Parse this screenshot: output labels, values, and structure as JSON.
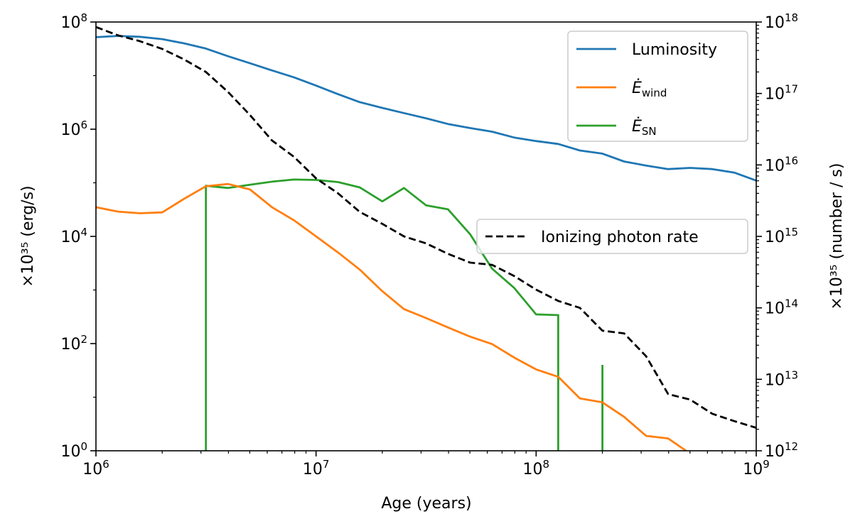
{
  "chart_data": {
    "type": "line",
    "xlabel": "Age (years)",
    "ylabel_left": "×10³⁵ (erg/s)",
    "ylabel_right": "×10³⁵ (number / s)",
    "x_scale": "log",
    "y_scale": "log",
    "y2_scale": "log",
    "xlim": [
      1000000.0,
      1000000000.0
    ],
    "ylim": [
      1,
      100000000.0
    ],
    "y2lim": [
      1000000000000.0,
      1e+18
    ],
    "grid": false,
    "x_ticks": [
      {
        "value": 1000000.0,
        "base": "10",
        "exp": "6"
      },
      {
        "value": 10000000.0,
        "base": "10",
        "exp": "7"
      },
      {
        "value": 100000000.0,
        "base": "10",
        "exp": "8"
      },
      {
        "value": 1000000000.0,
        "base": "10",
        "exp": "9"
      }
    ],
    "y_ticks": [
      {
        "value": 1,
        "base": "10",
        "exp": "0"
      },
      {
        "value": 100,
        "base": "10",
        "exp": "2"
      },
      {
        "value": 10000,
        "base": "10",
        "exp": "4"
      },
      {
        "value": 1000000,
        "base": "10",
        "exp": "6"
      },
      {
        "value": 100000000,
        "base": "10",
        "exp": "8"
      }
    ],
    "y2_ticks": [
      {
        "value": 1000000000000.0,
        "base": "10",
        "exp": "12"
      },
      {
        "value": 10000000000000.0,
        "base": "10",
        "exp": "13"
      },
      {
        "value": 100000000000000.0,
        "base": "10",
        "exp": "14"
      },
      {
        "value": 1000000000000000.0,
        "base": "10",
        "exp": "15"
      },
      {
        "value": 1e+16,
        "base": "10",
        "exp": "16"
      },
      {
        "value": 1e+17,
        "base": "10",
        "exp": "17"
      },
      {
        "value": 1e+18,
        "base": "10",
        "exp": "18"
      }
    ],
    "series": [
      {
        "id": "luminosity",
        "name": "Luminosity",
        "axis": "left",
        "color": "#1f77b4",
        "style": "solid",
        "x": [
          1000000.0,
          1260000.0,
          1580000.0,
          2000000.0,
          2510000.0,
          3160000.0,
          3980000.0,
          5010000.0,
          6310000.0,
          7940000.0,
          10000000.0,
          12600000.0,
          15800000.0,
          20000000.0,
          25100000.0,
          31600000.0,
          39800000.0,
          50100000.0,
          63100000.0,
          79400000.0,
          100000000.0,
          126000000.0,
          158000000.0,
          200000000.0,
          251000000.0,
          316000000.0,
          398000000.0,
          501000000.0,
          631000000.0,
          794000000.0,
          1000000000.0
        ],
        "y": [
          52000000.0,
          55000000.0,
          53000000.0,
          48000000.0,
          40000000.0,
          32000000.0,
          23000000.0,
          17000000.0,
          12500000.0,
          9300000.0,
          6500000.0,
          4500000.0,
          3200000.0,
          2500000.0,
          2000000.0,
          1600000.0,
          1250000.0,
          1050000.0,
          900000.0,
          700000.0,
          600000.0,
          530000.0,
          400000.0,
          350000.0,
          250000.0,
          210000.0,
          180000.0,
          190000.0,
          180000.0,
          155000.0,
          110000.0
        ]
      },
      {
        "id": "e_wind",
        "name": "Ė_wind",
        "name_main": "Ė",
        "name_sub": "wind",
        "axis": "left",
        "color": "#ff7f0e",
        "style": "solid",
        "x": [
          1000000.0,
          1260000.0,
          1580000.0,
          2000000.0,
          2510000.0,
          3160000.0,
          3980000.0,
          5010000.0,
          6310000.0,
          7940000.0,
          10000000.0,
          12600000.0,
          15800000.0,
          20000000.0,
          25100000.0,
          31600000.0,
          39800000.0,
          50100000.0,
          63100000.0,
          79400000.0,
          100000000.0,
          126000000.0,
          158000000.0,
          200000000.0,
          251000000.0,
          316000000.0,
          398000000.0,
          480000000.0
        ],
        "y": [
          35000.0,
          29000.0,
          27000.0,
          28000.0,
          50000.0,
          86000.0,
          95000.0,
          75000.0,
          35000.0,
          20000.0,
          10000.0,
          5000.0,
          2400.0,
          950.0,
          440.0,
          300.0,
          200.0,
          135.0,
          98.0,
          55.0,
          33.0,
          24.0,
          9.5,
          8,
          4.3,
          1.9,
          1.7,
          1
        ]
      },
      {
        "id": "e_sn",
        "name": "Ė_SN",
        "name_main": "Ė",
        "name_sub": "SN",
        "axis": "left",
        "color": "#2ca02c",
        "style": "solid",
        "segments": [
          {
            "x": [
              3160000.0,
              3160000.0,
              3980000.0,
              5010000.0,
              6310000.0,
              7940000.0,
              10000000.0,
              12600000.0,
              15800000.0,
              20000000.0,
              25100000.0,
              31600000.0,
              39800000.0,
              50100000.0,
              63100000.0,
              79400000.0,
              100000000.0,
              126000000.0,
              126000000.0
            ],
            "y": [
              1,
              88000.0,
              80000.0,
              92000.0,
              105000.0,
              115000.0,
              113000.0,
              103000.0,
              82000.0,
              45000.0,
              80000.0,
              38000.0,
              32000.0,
              11000.0,
              2500.0,
              1100.0,
              350.0,
              340.0,
              1
            ]
          },
          {
            "x": [
              200000000.0,
              200000000.0
            ],
            "y": [
              1,
              40
            ]
          }
        ]
      },
      {
        "id": "ionizing",
        "name": "Ionizing photon rate",
        "axis": "right",
        "color": "#000000",
        "style": "dashed",
        "x": [
          1000000.0,
          1260000.0,
          1580000.0,
          2000000.0,
          2510000.0,
          3160000.0,
          3980000.0,
          5010000.0,
          6310000.0,
          7940000.0,
          10000000.0,
          12600000.0,
          15800000.0,
          20000000.0,
          25100000.0,
          31600000.0,
          39800000.0,
          50100000.0,
          63100000.0,
          79400000.0,
          100000000.0,
          126000000.0,
          158000000.0,
          200000000.0,
          251000000.0,
          316000000.0,
          398000000.0,
          501000000.0,
          631000000.0,
          794000000.0,
          1000000000.0
        ],
        "y": [
          8.5e+17,
          6.5e+17,
          5.4e+17,
          4.2e+17,
          3e+17,
          2e+17,
          1.05e+17,
          5e+16,
          2.2e+16,
          1.3e+16,
          6500000000000000.0,
          4000000000000000.0,
          2200000000000000.0,
          1500000000000000.0,
          1000000000000000.0,
          800000000000000.0,
          570000000000000.0,
          430000000000000.0,
          400000000000000.0,
          280000000000000.0,
          180000000000000.0,
          125000000000000.0,
          100000000000000.0,
          48000000000000.0,
          44000000000000.0,
          21000000000000.0,
          6200000000000.0,
          5200000000000.0,
          3300000000000.0,
          2600000000000.0,
          2100000000000.0
        ]
      }
    ],
    "legends": [
      {
        "placement": "upper right",
        "entries": [
          "luminosity",
          "e_wind",
          "e_sn"
        ]
      },
      {
        "placement": "center right",
        "entries": [
          "ionizing"
        ]
      }
    ]
  }
}
